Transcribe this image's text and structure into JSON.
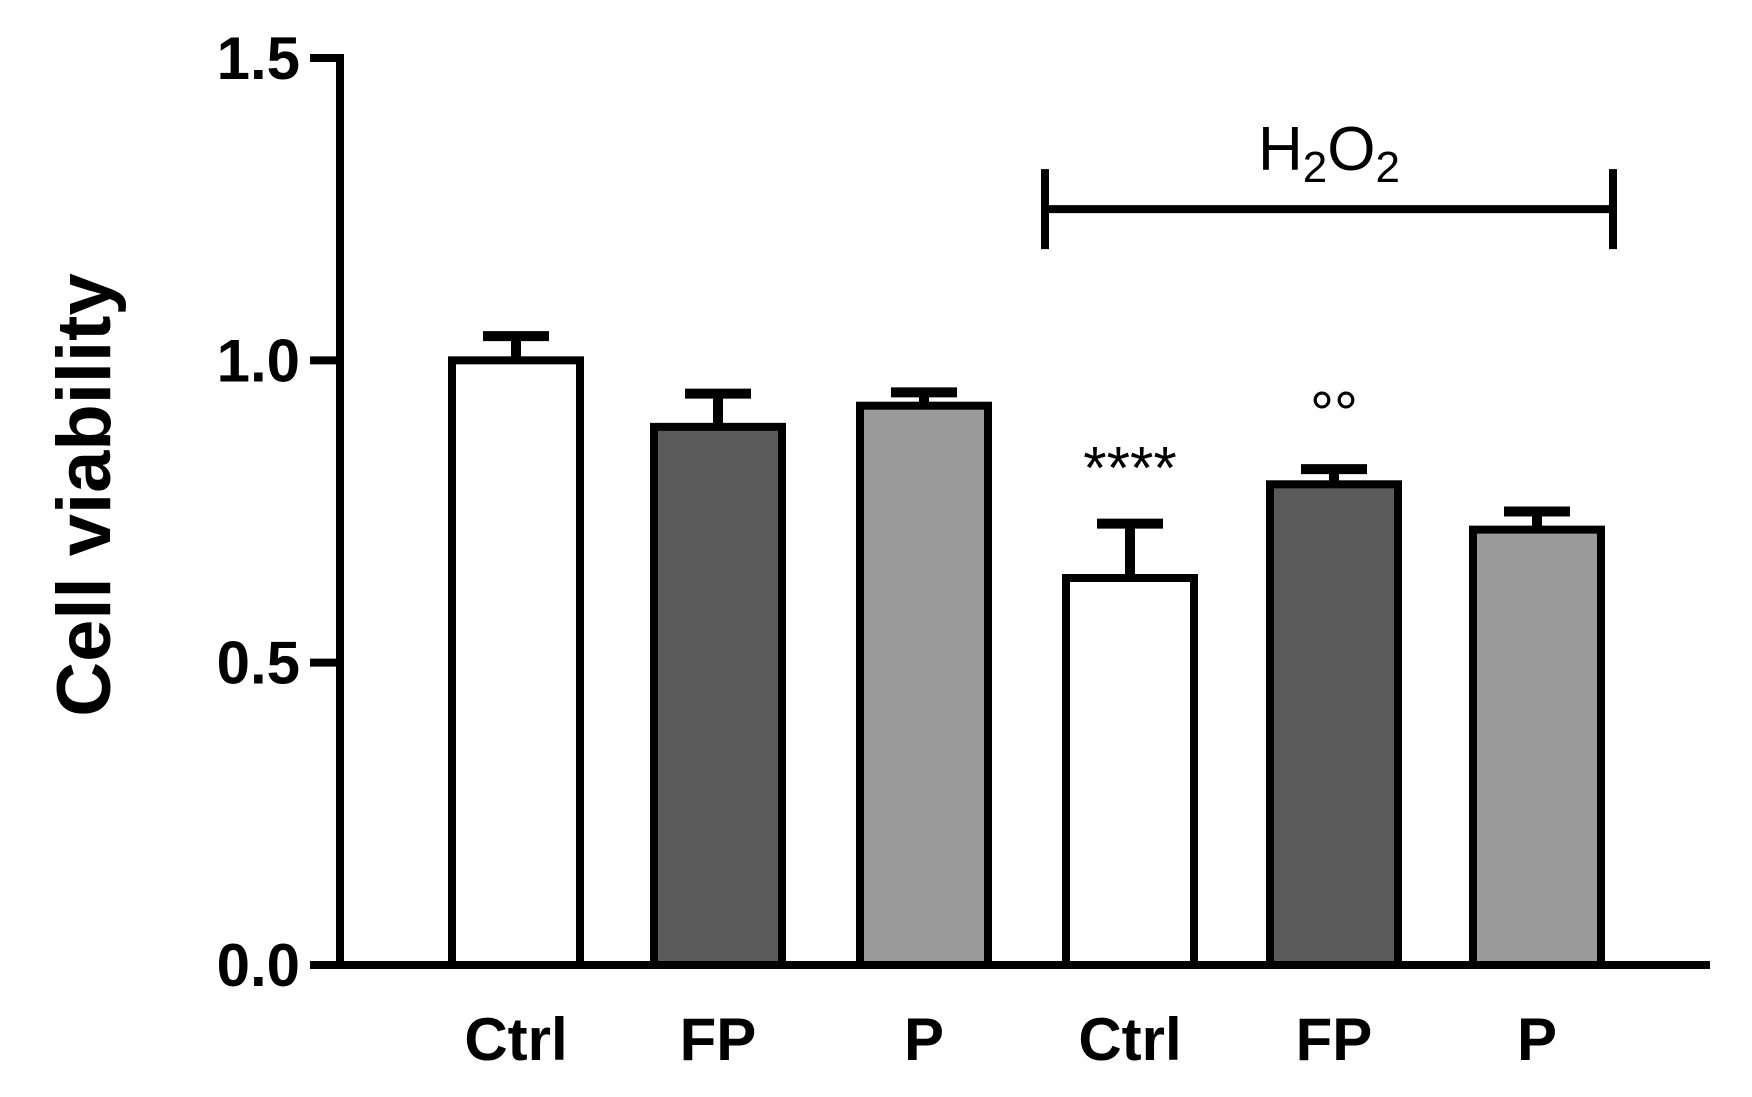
{
  "chart_data": {
    "type": "bar",
    "ylabel": "Cell viability",
    "xlabel": "",
    "ylim": [
      0,
      1.5
    ],
    "yticks": [
      "0.0",
      "0.5",
      "1.0",
      "1.5"
    ],
    "categories": [
      "Ctrl",
      "FP",
      "P",
      "Ctrl",
      "FP",
      "P"
    ],
    "values": [
      1.0,
      0.89,
      0.925,
      0.64,
      0.795,
      0.72
    ],
    "errors": [
      0.04,
      0.055,
      0.022,
      0.09,
      0.025,
      0.03
    ],
    "colors": [
      "#ffffff",
      "#5a5a5a",
      "#9a9a9a",
      "#ffffff",
      "#5a5a5a",
      "#9a9a9a"
    ],
    "annotations": [
      {
        "category_index": 3,
        "text": "****"
      },
      {
        "category_index": 4,
        "text": "°°"
      }
    ],
    "group_bracket": {
      "label_main": "H",
      "label_sub1": "2",
      "label_mid": "O",
      "label_sub2": "2",
      "from_index": 3,
      "to_index": 5,
      "y": 1.25
    },
    "grid": false,
    "legend": "none"
  }
}
